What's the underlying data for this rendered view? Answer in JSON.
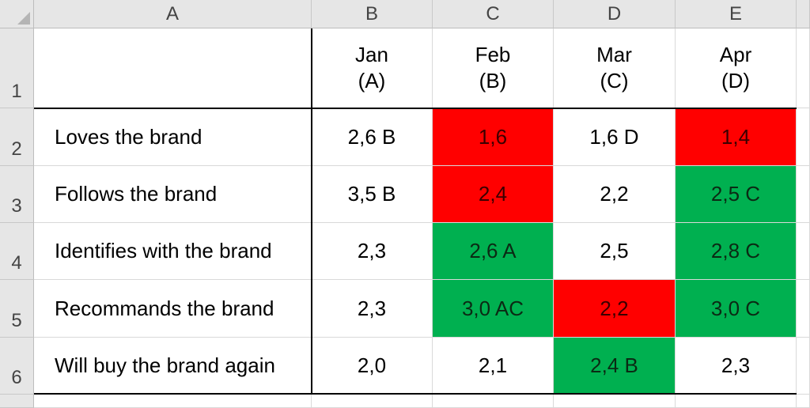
{
  "columns": [
    "A",
    "B",
    "C",
    "D",
    "E"
  ],
  "rows": [
    "1",
    "2",
    "3",
    "4",
    "5",
    "6"
  ],
  "header": [
    {
      "month": "Jan",
      "code": "(A)"
    },
    {
      "month": "Feb",
      "code": "(B)"
    },
    {
      "month": "Mar",
      "code": "(C)"
    },
    {
      "month": "Apr",
      "code": "(D)"
    }
  ],
  "data_rows": [
    {
      "label": "Loves the brand",
      "values": [
        "2,6 B",
        "1,6",
        "1,6 D",
        "1,4"
      ],
      "fills": [
        "none",
        "red",
        "none",
        "red"
      ]
    },
    {
      "label": "Follows the brand",
      "values": [
        "3,5 B",
        "2,4",
        "2,2",
        "2,5 C"
      ],
      "fills": [
        "none",
        "red",
        "none",
        "green"
      ]
    },
    {
      "label": "Identifies with the brand",
      "values": [
        "2,3",
        "2,6 A",
        "2,5",
        "2,8 C"
      ],
      "fills": [
        "none",
        "green",
        "none",
        "green"
      ]
    },
    {
      "label": "Recommands the brand",
      "values": [
        "2,3",
        "3,0 AC",
        "2,2",
        "3,0 C"
      ],
      "fills": [
        "none",
        "green",
        "red",
        "green"
      ]
    },
    {
      "label": "Will buy the brand again",
      "values": [
        "2,0",
        "2,1",
        "2,4 B",
        "2,3"
      ],
      "fills": [
        "none",
        "none",
        "green",
        "none"
      ]
    }
  ],
  "colors": {
    "red": "#ff0000",
    "green": "#00b050"
  }
}
